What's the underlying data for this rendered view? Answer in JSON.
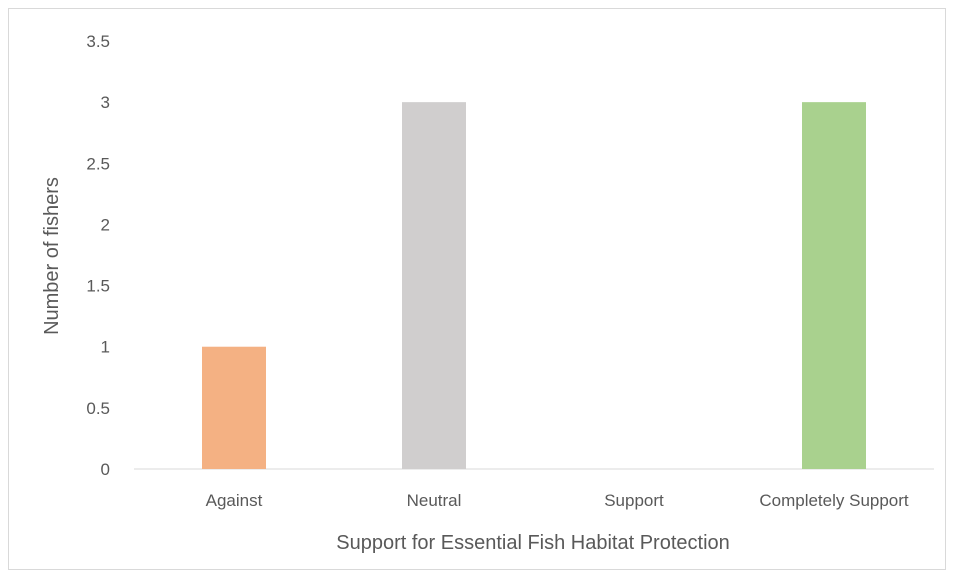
{
  "chart_data": {
    "type": "bar",
    "title": "",
    "xlabel": "Support for Essential Fish Habitat Protection",
    "ylabel": "Number of fishers",
    "categories": [
      "Against",
      "Neutral",
      "Support",
      "Completely Support"
    ],
    "values": [
      1,
      3,
      0,
      3
    ],
    "colors": [
      "#f4b183",
      "#d0cece",
      "#9dc3e6",
      "#a9d18e"
    ],
    "ylim": [
      0,
      3.5
    ],
    "yticks": [
      0,
      0.5,
      1,
      1.5,
      2,
      2.5,
      3,
      3.5
    ],
    "ytick_labels": [
      "0",
      "0.5",
      "1",
      "1.5",
      "2",
      "2.5",
      "3",
      "3.5"
    ],
    "grid": false,
    "legend": "none",
    "axis_color": "#d9d9d9"
  }
}
